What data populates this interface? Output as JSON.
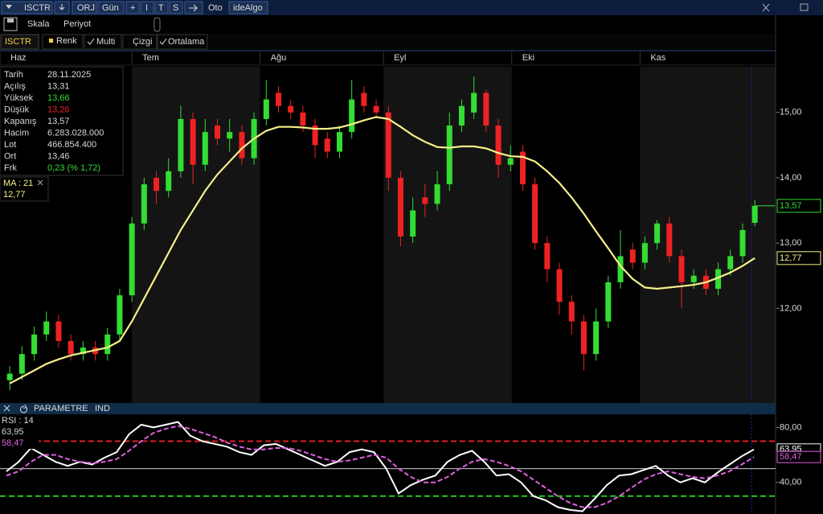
{
  "toolbar": {
    "symbol": "ISCTR",
    "items": [
      "ORJ",
      "Gün",
      "+",
      "I",
      "T",
      "S",
      "Oto",
      "ideAlgo"
    ]
  },
  "menu": [
    "Skala",
    "Periyot"
  ],
  "tabs": {
    "symbol": "ISCTR",
    "items": [
      "Renk",
      "Multi",
      "Çizgi",
      "Ortalama"
    ]
  },
  "info": {
    "rows": [
      {
        "label": "Tarih",
        "value": "28.11.2025"
      },
      {
        "label": "Açılış",
        "value": "13,31"
      },
      {
        "label": "Yüksek",
        "value": "13,66",
        "color": "#33dd33"
      },
      {
        "label": "Düşük",
        "value": "13,26",
        "color": "#ee2222"
      },
      {
        "label": "Kapanış",
        "value": "13,57"
      },
      {
        "label": "Hacim",
        "value": "6.283.028.000"
      },
      {
        "label": "Lot",
        "value": "466.854.400"
      },
      {
        "label": "Ort",
        "value": "13,46"
      },
      {
        "label": "Frk",
        "value": "0,23 (% 1,72)",
        "color": "#33dd33"
      }
    ]
  },
  "ma_box": {
    "label": "MA : 21"
  },
  "panel": {
    "title": "PARAMETRE",
    "tab": "IND"
  },
  "rsi_box": {
    "label": "RSI : 14"
  },
  "chart_data": [
    {
      "type": "candlestick",
      "xlim": [
        -0.8,
        62.7
      ],
      "ylim": [
        10.6,
        15.7
      ],
      "xticks": [
        {
          "value": -0.8,
          "label": "Haz"
        },
        {
          "value": 10,
          "label": "Tem"
        },
        {
          "value": 20.5,
          "label": "Ağu"
        },
        {
          "value": 30.6,
          "label": "Eyl"
        },
        {
          "value": 41.1,
          "label": "Eki"
        },
        {
          "value": 51.6,
          "label": "Kas"
        }
      ],
      "yticks": [
        {
          "value": 12,
          "label": "12,00"
        },
        {
          "value": 13,
          "label": "13,00"
        },
        {
          "value": 14,
          "label": "14,00"
        },
        {
          "value": 15,
          "label": "15,00"
        }
      ],
      "up_color": "#33dd33",
      "down_color": "#ee2222",
      "open": [
        10.9,
        11.0,
        11.3,
        11.6,
        11.8,
        11.5,
        11.3,
        11.4,
        11.3,
        11.6,
        12.2,
        13.3,
        14.0,
        13.8,
        14.1,
        14.9,
        14.2,
        14.8,
        14.6,
        14.7,
        14.3,
        14.9,
        15.3,
        15.1,
        15.0,
        14.8,
        14.6,
        14.4,
        14.7,
        15.3,
        15.1,
        15.0,
        14.0,
        13.1,
        13.7,
        13.6,
        13.9,
        14.8,
        15.0,
        15.3,
        14.8,
        14.2,
        14.4,
        13.9,
        13.0,
        12.6,
        12.1,
        11.8,
        11.3,
        11.8,
        12.4,
        12.9,
        12.7,
        13.0,
        13.3,
        12.8,
        12.4,
        12.5,
        12.3,
        12.6,
        12.8,
        13.31
      ],
      "high": [
        11.12,
        11.42,
        11.72,
        11.95,
        11.9,
        11.6,
        11.5,
        11.5,
        11.7,
        12.3,
        13.4,
        14.0,
        14.1,
        14.3,
        15.1,
        15.0,
        14.9,
        14.9,
        14.9,
        14.8,
        15.0,
        15.5,
        15.4,
        15.2,
        15.1,
        14.9,
        14.7,
        14.8,
        15.5,
        15.4,
        15.2,
        15.1,
        14.1,
        13.7,
        13.9,
        14.1,
        15.0,
        15.2,
        15.55,
        15.35,
        14.9,
        14.5,
        14.5,
        14.0,
        13.1,
        12.7,
        12.2,
        11.9,
        12.0,
        12.5,
        13.2,
        13.0,
        13.1,
        13.35,
        13.4,
        12.9,
        12.6,
        12.6,
        12.7,
        12.9,
        13.3,
        13.66
      ],
      "low": [
        10.75,
        10.9,
        11.2,
        11.5,
        11.4,
        11.2,
        11.2,
        11.2,
        11.2,
        11.5,
        12.1,
        13.2,
        13.6,
        13.7,
        14.0,
        13.9,
        14.1,
        14.5,
        14.4,
        14.2,
        14.2,
        14.8,
        15.0,
        14.9,
        14.7,
        14.3,
        14.3,
        14.3,
        14.6,
        15.0,
        14.9,
        13.8,
        12.95,
        13.0,
        13.4,
        13.5,
        13.8,
        14.7,
        14.9,
        14.7,
        14.0,
        14.1,
        13.8,
        12.9,
        12.4,
        11.9,
        11.6,
        11.05,
        11.2,
        11.7,
        12.3,
        12.6,
        12.6,
        12.9,
        12.7,
        12.0,
        12.3,
        12.2,
        12.2,
        12.5,
        12.7,
        13.26
      ],
      "close": [
        11.0,
        11.3,
        11.6,
        11.8,
        11.5,
        11.3,
        11.4,
        11.3,
        11.6,
        12.2,
        13.3,
        13.9,
        13.8,
        14.1,
        14.9,
        14.2,
        14.7,
        14.6,
        14.7,
        14.3,
        14.9,
        15.2,
        15.1,
        15.0,
        14.8,
        14.5,
        14.4,
        14.7,
        15.2,
        15.1,
        15.0,
        14.0,
        13.1,
        13.5,
        13.6,
        13.9,
        14.8,
        15.1,
        15.3,
        14.8,
        14.2,
        14.3,
        13.9,
        13.0,
        12.6,
        12.1,
        11.8,
        11.3,
        11.8,
        12.4,
        12.8,
        12.7,
        13.0,
        13.3,
        12.8,
        12.4,
        12.5,
        12.3,
        12.6,
        12.8,
        13.2,
        13.57
      ],
      "ma": {
        "color": "#f5f08a",
        "values": [
          10.85,
          10.95,
          11.05,
          11.15,
          11.22,
          11.28,
          11.32,
          11.36,
          11.4,
          11.5,
          11.8,
          12.15,
          12.5,
          12.85,
          13.2,
          13.5,
          13.8,
          14.05,
          14.25,
          14.45,
          14.6,
          14.72,
          14.78,
          14.78,
          14.77,
          14.75,
          14.75,
          14.77,
          14.82,
          14.88,
          14.93,
          14.9,
          14.78,
          14.65,
          14.55,
          14.47,
          14.46,
          14.48,
          14.48,
          14.45,
          14.38,
          14.33,
          14.32,
          14.25,
          14.1,
          13.92,
          13.7,
          13.45,
          13.18,
          12.92,
          12.65,
          12.45,
          12.32,
          12.3,
          12.32,
          12.34,
          12.36,
          12.4,
          12.47,
          12.55,
          12.65,
          12.77
        ]
      },
      "last_tags": [
        {
          "value": 13.57,
          "label": "13,57",
          "color": "#33dd33"
        },
        {
          "value": 12.77,
          "label": "12,77",
          "color": "#f5f08a"
        }
      ]
    },
    {
      "type": "line",
      "ylim": [
        17,
        89
      ],
      "yticks": [
        {
          "value": 40,
          "label": "40,00"
        },
        {
          "value": 80,
          "label": "80,00"
        }
      ],
      "levels": [
        {
          "value": 70,
          "color": "#e02020"
        },
        {
          "value": 50,
          "color": "#cccccc"
        },
        {
          "value": 30,
          "color": "#22cc22"
        }
      ],
      "series": [
        {
          "color": "#ffffff",
          "values": [
            48,
            55,
            65,
            60,
            55,
            52,
            55,
            53,
            58,
            62,
            75,
            82,
            80,
            82,
            84,
            74,
            70,
            68,
            66,
            62,
            60,
            67,
            68,
            64,
            60,
            56,
            52,
            55,
            62,
            64,
            62,
            50,
            32,
            38,
            42,
            45,
            55,
            60,
            63,
            55,
            45,
            46,
            40,
            30,
            27,
            22,
            20,
            19,
            28,
            38,
            45,
            46,
            49,
            52,
            45,
            40,
            43,
            40,
            47,
            53,
            59,
            63.95
          ]
        },
        {
          "color": "#e060e0",
          "dashed": true,
          "values": [
            45,
            48,
            55,
            60,
            60,
            57,
            55,
            54,
            55,
            57,
            63,
            70,
            76,
            79,
            81,
            79,
            76,
            73,
            69,
            66,
            64,
            64,
            65,
            65,
            63,
            60,
            57,
            55,
            56,
            58,
            60,
            58,
            50,
            44,
            40,
            40,
            44,
            50,
            55,
            57,
            55,
            52,
            48,
            42,
            36,
            30,
            25,
            22,
            22,
            25,
            30,
            36,
            42,
            46,
            48,
            46,
            44,
            43,
            45,
            48,
            53,
            58.47
          ]
        }
      ],
      "last_tags": [
        {
          "value": 63.95,
          "label": "63,95",
          "color": "#ffffff"
        },
        {
          "value": 58.47,
          "label": "58,47",
          "color": "#e060e0"
        }
      ]
    }
  ]
}
